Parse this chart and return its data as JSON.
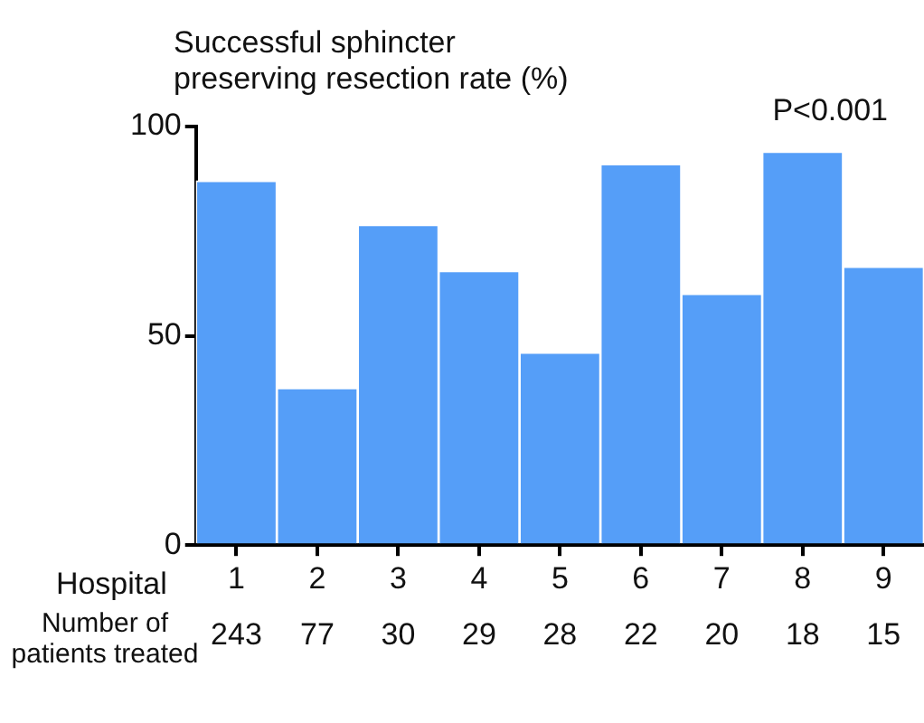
{
  "chart_data": {
    "type": "bar",
    "ylabel": "Successful sphincter preserving resection rate (%)",
    "xlabel": "Hospital",
    "categories": [
      "1",
      "2",
      "3",
      "4",
      "5",
      "6",
      "7",
      "8",
      "9"
    ],
    "values": [
      87,
      37.5,
      76.5,
      65.5,
      46,
      91,
      60,
      94,
      66.5
    ],
    "color": "#559ef8",
    "ylim": [
      0,
      100
    ],
    "yticks": [
      0,
      50,
      100
    ],
    "annotations": [
      "P<0.001",
      "Number of patients treated",
      "243",
      "77",
      "30",
      "29",
      "28",
      "22",
      "20",
      "18",
      "15"
    ]
  }
}
